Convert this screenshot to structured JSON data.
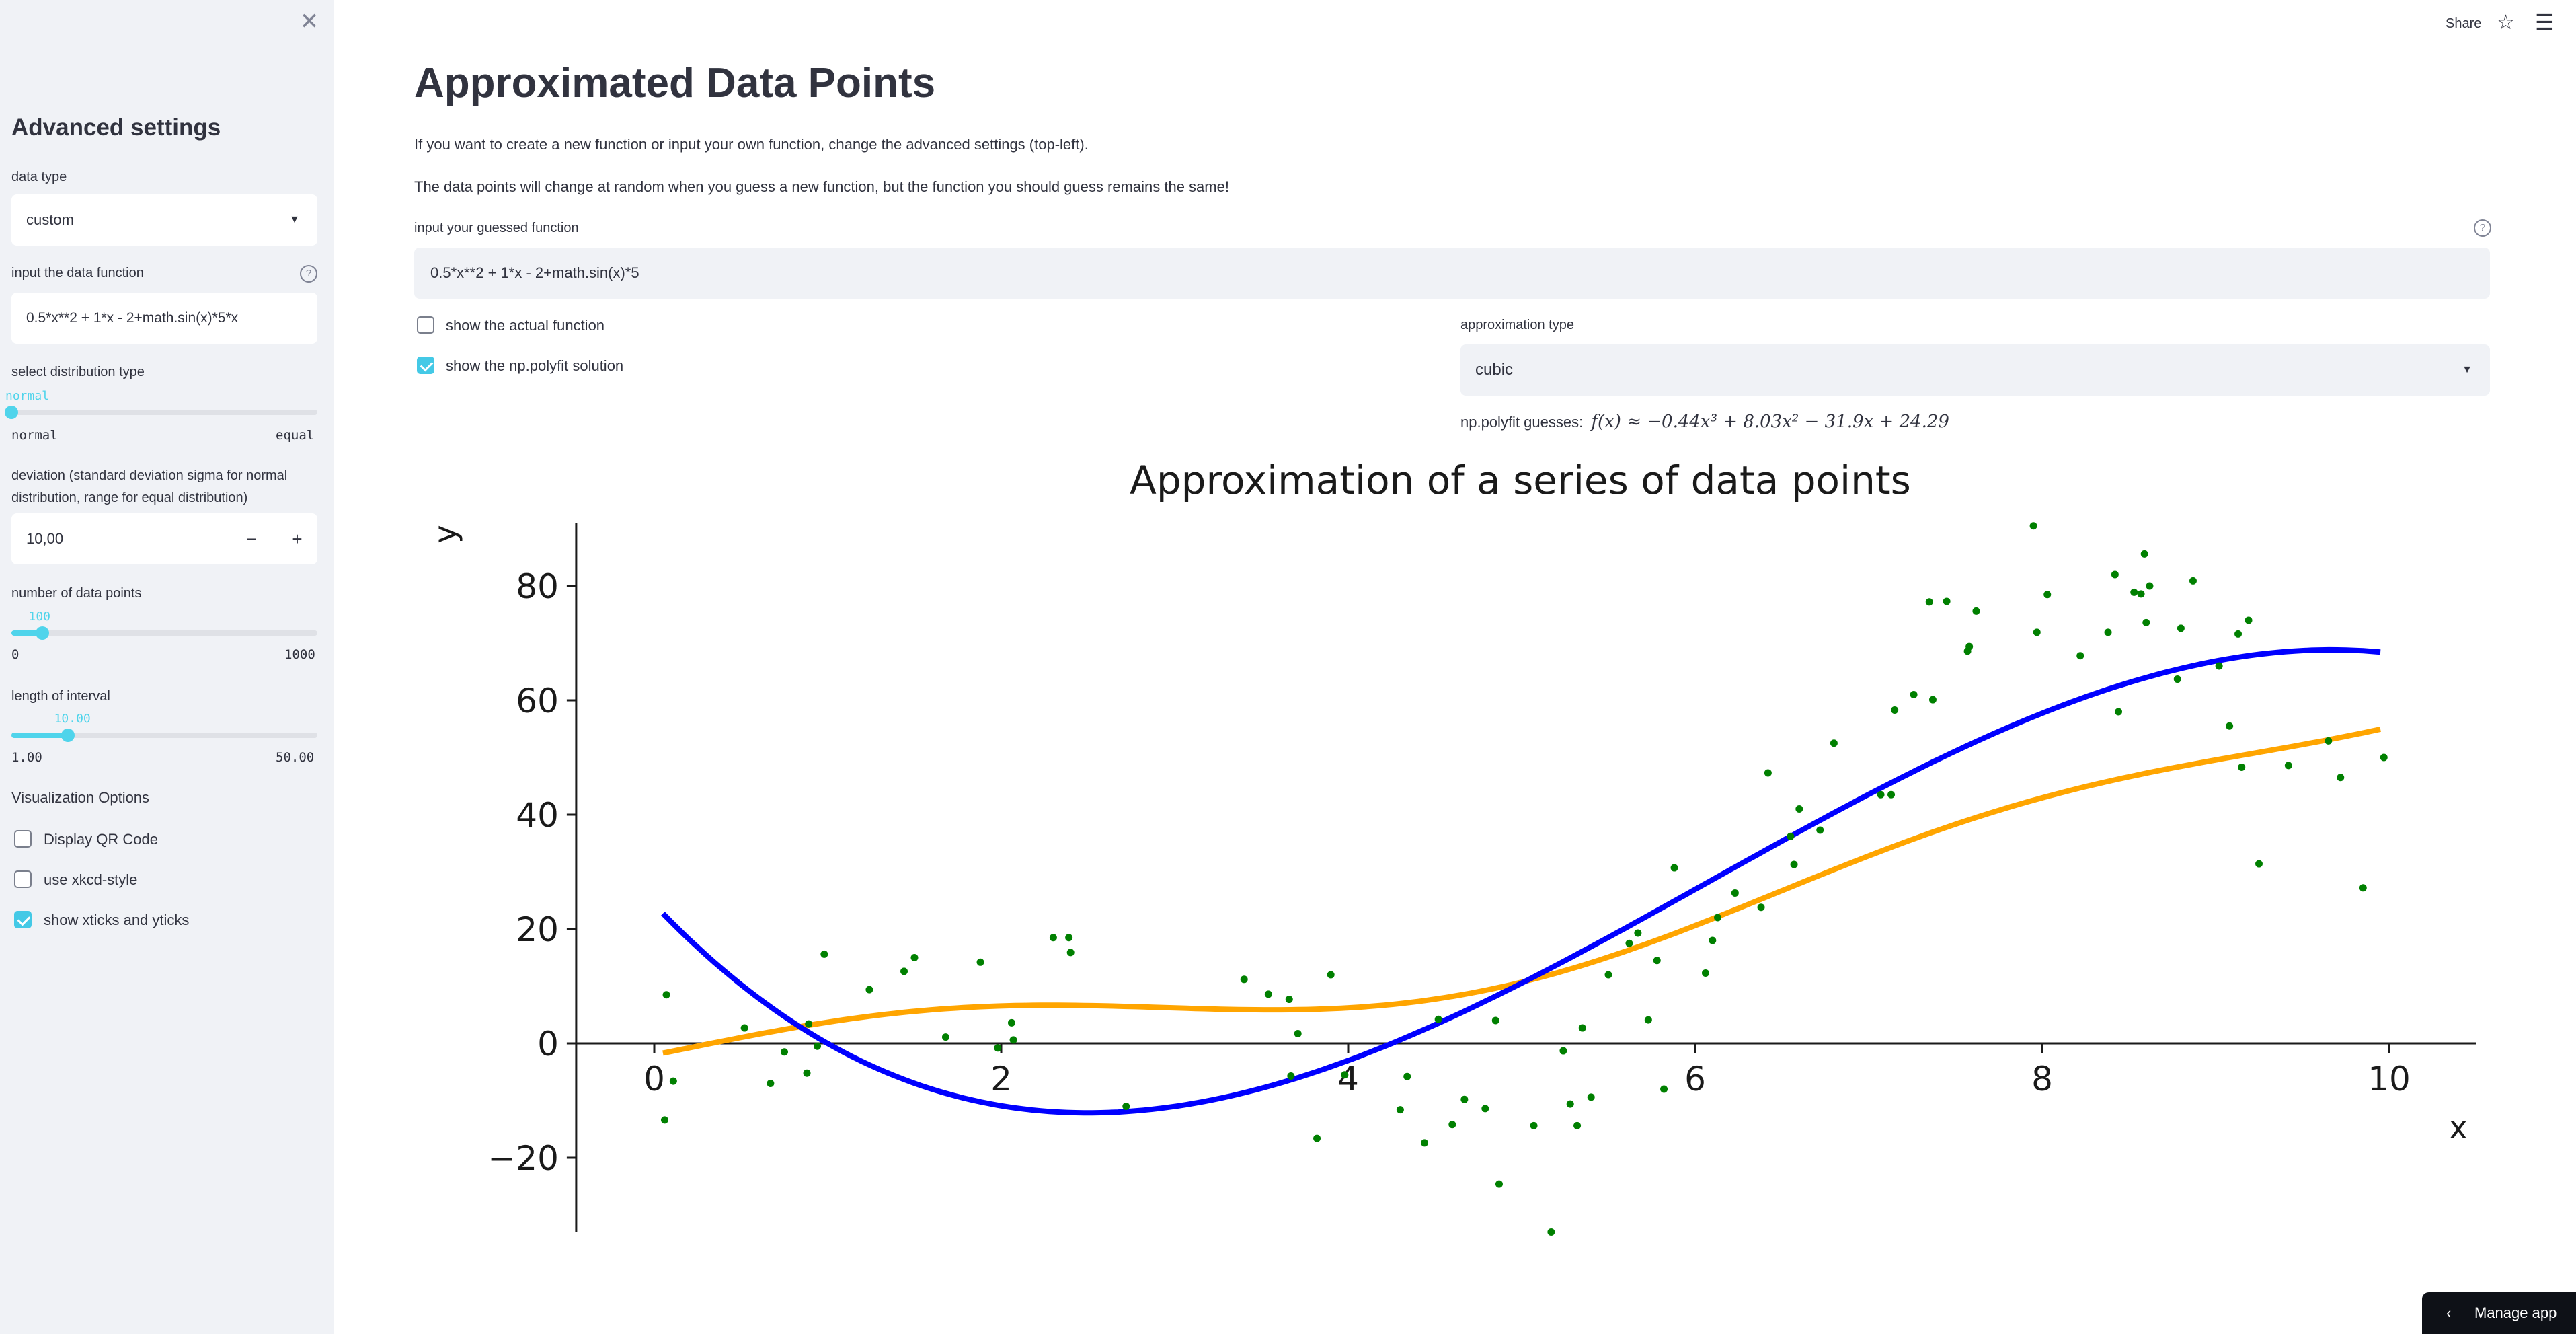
{
  "sidebar": {
    "close_icon": "close-icon",
    "title": "Advanced settings",
    "data_type": {
      "label": "data type",
      "value": "custom"
    },
    "data_function": {
      "label": "input the data function",
      "value": "0.5*x**2 + 1*x - 2+math.sin(x)*5*x"
    },
    "distribution": {
      "label": "select distribution type",
      "value": "normal",
      "min_label": "normal",
      "max_label": "equal",
      "position_fraction": 0
    },
    "deviation": {
      "label": "deviation (standard deviation sigma for normal distribution, range for equal distribution)",
      "label_line1": "deviation (standard deviation sigma for normal",
      "label_line2": "distribution, range for equal distribution)",
      "value": "10,00",
      "minus": "−",
      "plus": "+"
    },
    "num_points": {
      "label": "number of data points",
      "value": 100,
      "value_text": "100",
      "min": 0,
      "min_text": "0",
      "max": 1000,
      "max_text": "1000"
    },
    "interval": {
      "label": "length of interval",
      "value": 10.0,
      "value_text": "10.00",
      "min": 1.0,
      "min_text": "1.00",
      "max": 50.0,
      "max_text": "50.00"
    },
    "viz_title": "Visualization Options",
    "options": [
      {
        "label": "Display QR Code",
        "checked": false
      },
      {
        "label": "use xkcd-style",
        "checked": false
      },
      {
        "label": "show xticks and yticks",
        "checked": true
      }
    ]
  },
  "topbar": {
    "share": "Share",
    "star_icon": "star-icon",
    "menu_icon": "hamburger-menu-icon"
  },
  "main": {
    "title": "Approximated Data Points",
    "para1": "If you want to create a new function or input your own function, change the advanced settings (top-left).",
    "para2": "The data points will change at random when you guess a new function, but the function you should guess remains the same!",
    "guess_label": "input your guessed function",
    "guess_value": "0.5*x**2 + 1*x - 2+math.sin(x)*5",
    "show_actual": {
      "label": "show the actual function",
      "checked": false
    },
    "show_polyfit": {
      "label": "show the np.polyfit solution",
      "checked": true
    },
    "approx_label": "approximation type",
    "approx_value": "cubic",
    "polyfit_prefix": "np.polyfit guesses:",
    "polyfit_formula": "f(x) ≈ −0.44x³ + 8.03x² − 31.9x + 24.29",
    "manage_app": "Manage app"
  },
  "colors": {
    "accent": "#4fd4eb",
    "points": "#008000",
    "polyfit": "#0000ff",
    "guess": "#ffa500"
  },
  "chart_data": {
    "type": "scatter",
    "title": "Approximation of a series of data points",
    "xlabel": "x",
    "ylabel": "y",
    "xlim": [
      -0.45,
      10.5
    ],
    "ylim": [
      -33,
      91
    ],
    "xticks": [
      0,
      2,
      4,
      6,
      8,
      10
    ],
    "xtick_labels": [
      "0",
      "2",
      "4",
      "6",
      "8",
      "10"
    ],
    "yticks": [
      -20,
      0,
      20,
      40,
      60,
      80
    ],
    "ytick_labels": [
      "−20",
      "0",
      "20",
      "40",
      "60",
      "80"
    ],
    "points": [
      [
        0.07,
        8.5
      ],
      [
        0.06,
        -13.4
      ],
      [
        0.11,
        -6.6
      ],
      [
        0.52,
        2.7
      ],
      [
        0.67,
        -7
      ],
      [
        0.75,
        -1.5
      ],
      [
        0.88,
        -5.2
      ],
      [
        0.94,
        -0.5
      ],
      [
        0.89,
        3.4
      ],
      [
        0.98,
        15.6
      ],
      [
        1.24,
        9.4
      ],
      [
        1.44,
        12.6
      ],
      [
        1.5,
        15
      ],
      [
        1.68,
        1.1
      ],
      [
        1.88,
        14.2
      ],
      [
        1.98,
        -0.8
      ],
      [
        2.06,
        3.6
      ],
      [
        2.07,
        0.6
      ],
      [
        2.3,
        18.5
      ],
      [
        2.39,
        18.5
      ],
      [
        2.4,
        15.9
      ],
      [
        2.72,
        -11
      ],
      [
        3.4,
        11.2
      ],
      [
        3.54,
        8.6
      ],
      [
        3.66,
        7.7
      ],
      [
        3.67,
        -5.7
      ],
      [
        3.71,
        1.7
      ],
      [
        3.82,
        -16.6
      ],
      [
        3.9,
        12
      ],
      [
        3.98,
        -5.5
      ],
      [
        4.3,
        -11.6
      ],
      [
        4.34,
        -5.8
      ],
      [
        4.44,
        -17.4
      ],
      [
        4.52,
        4.2
      ],
      [
        4.6,
        -14.2
      ],
      [
        4.67,
        -9.8
      ],
      [
        4.79,
        -11.4
      ],
      [
        4.85,
        4
      ],
      [
        4.87,
        -24.6
      ],
      [
        5.07,
        -14.4
      ],
      [
        5.17,
        -33
      ],
      [
        5.24,
        -1.3
      ],
      [
        5.28,
        -10.6
      ],
      [
        5.32,
        -14.4
      ],
      [
        5.35,
        2.7
      ],
      [
        5.4,
        -9.4
      ],
      [
        5.5,
        12
      ],
      [
        5.62,
        17.5
      ],
      [
        5.67,
        19.3
      ],
      [
        5.73,
        4.1
      ],
      [
        5.78,
        14.5
      ],
      [
        5.82,
        -8
      ],
      [
        5.88,
        30.7
      ],
      [
        6.06,
        12.3
      ],
      [
        6.1,
        18
      ],
      [
        6.13,
        22
      ],
      [
        6.23,
        26.3
      ],
      [
        6.38,
        23.8
      ],
      [
        6.42,
        47.3
      ],
      [
        6.55,
        36.2
      ],
      [
        6.57,
        31.3
      ],
      [
        6.6,
        41
      ],
      [
        6.72,
        37.3
      ],
      [
        6.8,
        52.5
      ],
      [
        7.07,
        43.5
      ],
      [
        7.13,
        43.5
      ],
      [
        7.15,
        58.3
      ],
      [
        7.26,
        61
      ],
      [
        7.35,
        77.2
      ],
      [
        7.37,
        60.1
      ],
      [
        7.45,
        77.3
      ],
      [
        7.57,
        68.6
      ],
      [
        7.58,
        69.4
      ],
      [
        7.62,
        75.6
      ],
      [
        7.95,
        90.5
      ],
      [
        7.97,
        71.9
      ],
      [
        8.03,
        78.5
      ],
      [
        8.22,
        67.8
      ],
      [
        8.38,
        71.9
      ],
      [
        8.42,
        82
      ],
      [
        8.44,
        58
      ],
      [
        8.53,
        78.9
      ],
      [
        8.57,
        78.6
      ],
      [
        8.59,
        85.6
      ],
      [
        8.6,
        73.6
      ],
      [
        8.62,
        80
      ],
      [
        8.78,
        63.7
      ],
      [
        8.8,
        72.6
      ],
      [
        8.87,
        80.9
      ],
      [
        9.08,
        55.5
      ],
      [
        9.13,
        71.6
      ],
      [
        9.15,
        48.3
      ],
      [
        9.19,
        74
      ],
      [
        9.25,
        31.4
      ],
      [
        9.42,
        48.6
      ],
      [
        9.72,
        46.5
      ],
      [
        9.85,
        27.2
      ],
      [
        9.97,
        50
      ],
      [
        9.65,
        52.9
      ],
      [
        9.02,
        66
      ]
    ],
    "series": [
      {
        "name": "np.polyfit solution",
        "color": "#0000ff",
        "coeffs": [
          -0.44,
          8.03,
          -31.9,
          24.29
        ]
      },
      {
        "name": "guessed function",
        "color": "#ffa500",
        "expr": "0.5*x**2 + 1*x - 2 + sin(x)*5"
      }
    ],
    "curve_domain": [
      0.05,
      9.95
    ],
    "grid": false
  }
}
